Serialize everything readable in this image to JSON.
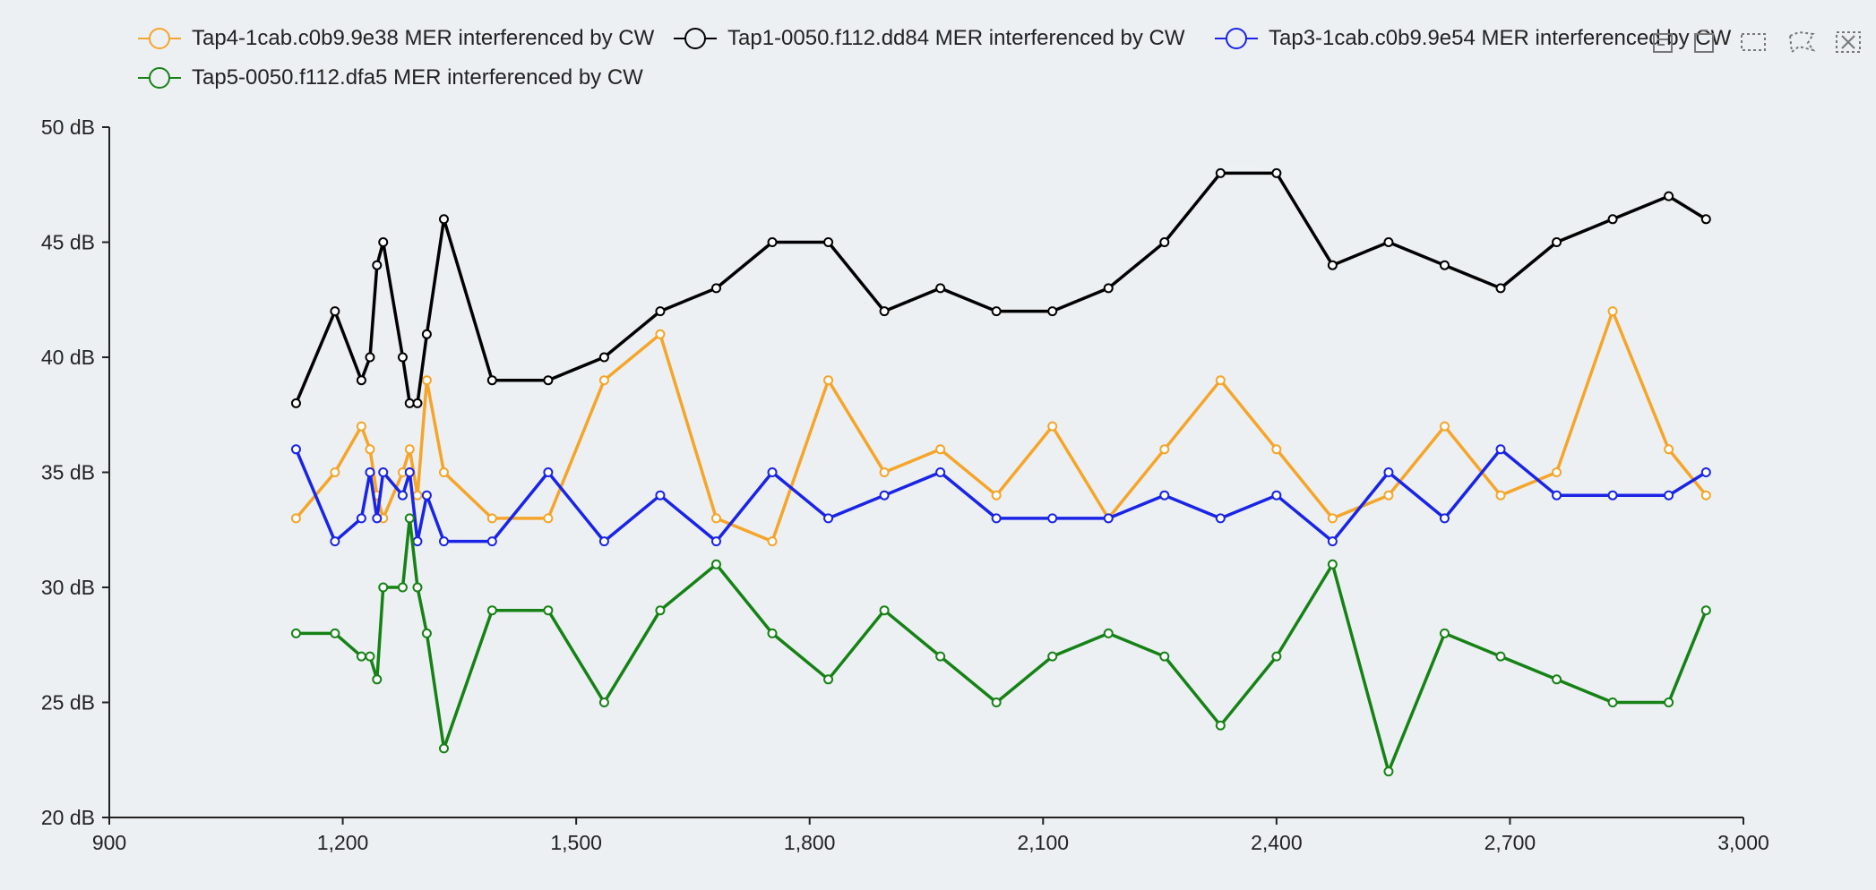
{
  "chart_data": {
    "type": "line",
    "title": "",
    "xlabel": "",
    "ylabel": "",
    "xlim": [
      900,
      3000
    ],
    "ylim": [
      20,
      50
    ],
    "x_ticks": [
      900,
      1200,
      1500,
      1800,
      2100,
      2400,
      2700,
      3000
    ],
    "x_tick_labels": [
      "900",
      "1,200",
      "1,500",
      "1,800",
      "2,100",
      "2,400",
      "2,700",
      "3,000"
    ],
    "y_ticks": [
      20,
      25,
      30,
      35,
      40,
      45,
      50
    ],
    "y_tick_labels": [
      "20 dB",
      "25 dB",
      "30 dB",
      "35 dB",
      "40 dB",
      "45 dB",
      "50 dB"
    ],
    "grid": false,
    "legend_position": "top",
    "x": [
      1140,
      1190,
      1224,
      1235,
      1244,
      1252,
      1277,
      1286,
      1296,
      1308,
      1330,
      1392,
      1464,
      1536,
      1608,
      1680,
      1752,
      1824,
      1896,
      1968,
      2040,
      2112,
      2184,
      2256,
      2328,
      2400,
      2472,
      2544,
      2616,
      2688,
      2760,
      2832,
      2904,
      2952
    ],
    "series": [
      {
        "name": "Tap4-1cab.c0b9.9e38 MER interferenced by CW",
        "color": "#f5a52a",
        "values": [
          33,
          35,
          37,
          36,
          34,
          33,
          35,
          36,
          34,
          39,
          35,
          33,
          33,
          39,
          41,
          33,
          32,
          39,
          35,
          36,
          34,
          37,
          33,
          36,
          39,
          36,
          33,
          34,
          37,
          34,
          35,
          42,
          36,
          34
        ]
      },
      {
        "name": "Tap1-0050.f112.dd84 MER interferenced by CW",
        "color": "#000000",
        "values": [
          38,
          42,
          39,
          40,
          44,
          45,
          40,
          38,
          38,
          41,
          46,
          39,
          39,
          40,
          42,
          43,
          45,
          45,
          42,
          43,
          42,
          42,
          43,
          45,
          48,
          48,
          44,
          45,
          44,
          43,
          45,
          46,
          47,
          46
        ]
      },
      {
        "name": "Tap3-1cab.c0b9.9e54 MER interferenced by CW",
        "color": "#1a24e6",
        "values": [
          36,
          32,
          33,
          35,
          33,
          35,
          34,
          35,
          32,
          34,
          32,
          32,
          35,
          32,
          34,
          32,
          35,
          33,
          34,
          35,
          33,
          33,
          33,
          34,
          33,
          34,
          32,
          35,
          33,
          36,
          34,
          34,
          34,
          35
        ]
      },
      {
        "name": "Tap5-0050.f112.dfa5 MER interferenced by CW",
        "color": "#168216",
        "values": [
          28,
          28,
          27,
          27,
          26,
          30,
          30,
          33,
          30,
          28,
          23,
          29,
          29,
          25,
          29,
          31,
          28,
          26,
          29,
          27,
          25,
          27,
          28,
          27,
          24,
          27,
          31,
          22,
          28,
          27,
          26,
          25,
          25,
          29
        ]
      }
    ]
  },
  "toolbox": {
    "icons": [
      "data-view-icon",
      "restore-icon",
      "zoom-select-icon",
      "lasso-select-icon",
      "clear-selection-icon"
    ]
  }
}
